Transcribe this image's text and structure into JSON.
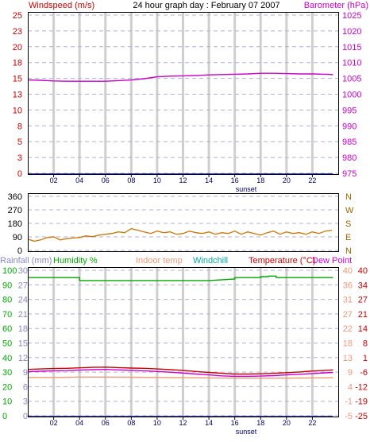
{
  "chart_data": [
    {
      "type": "line",
      "panel": "top",
      "title": "24 hour graph day : February 07 2007",
      "left_axis_label": "Windspeed (m/s)",
      "right_axis_label": "Barometer (hPa)",
      "left_ticks": [
        "25",
        "23",
        "20",
        "18",
        "15",
        "13",
        "10",
        "8",
        "5",
        "3",
        "0"
      ],
      "right_ticks": [
        "1025",
        "1020",
        "1015",
        "1010",
        "1005",
        "1000",
        "995",
        "990",
        "985",
        "980",
        "975"
      ],
      "x_ticks": [
        "02",
        "04",
        "06",
        "08",
        "10",
        "12",
        "14",
        "16",
        "18",
        "20",
        "22"
      ],
      "x_annotation": "sunset",
      "xlim": [
        0,
        24
      ],
      "left_ylim": [
        0,
        25.5
      ],
      "right_ylim": [
        975,
        1026
      ],
      "colors": {
        "left_label": "#cc0000",
        "right_label": "#cc00cc"
      },
      "series": [
        {
          "axis": "right",
          "color": "#cc00cc",
          "x": [
            0,
            1,
            2,
            3,
            4,
            5,
            6,
            7,
            8,
            9,
            10,
            11,
            12,
            13,
            14,
            15,
            16,
            17,
            18,
            19,
            20,
            21,
            22,
            23,
            23.6
          ],
          "values": [
            1004.6,
            1004.5,
            1004.3,
            1004.2,
            1004.2,
            1004.2,
            1004.2,
            1004.4,
            1004.6,
            1005.0,
            1005.6,
            1005.8,
            1005.9,
            1006.0,
            1006.2,
            1006.3,
            1006.4,
            1006.5,
            1006.7,
            1006.7,
            1006.6,
            1006.5,
            1006.5,
            1006.4,
            1006.3
          ]
        },
        {
          "axis": "left",
          "color": "#0000cc",
          "x": [
            0,
            23.6
          ],
          "values": [
            0,
            0
          ]
        }
      ]
    },
    {
      "type": "line",
      "panel": "middle",
      "left_ticks": [
        "360",
        "270",
        "180",
        "90",
        "0"
      ],
      "right_ticks": [
        "N",
        "W",
        "S",
        "E",
        "N"
      ],
      "xlim": [
        0,
        24
      ],
      "ylim": [
        0,
        360
      ],
      "colors": {
        "right_label": "#996600"
      },
      "series": [
        {
          "color": "#cc7700",
          "x": [
            0,
            0.5,
            1,
            1.5,
            2,
            2.5,
            3,
            3.5,
            4,
            4.5,
            5,
            5.5,
            6,
            6.5,
            7,
            7.5,
            8,
            8.5,
            9,
            9.5,
            10,
            10.5,
            11,
            11.5,
            12,
            12.5,
            13,
            13.5,
            14,
            14.5,
            15,
            15.5,
            16,
            16.5,
            17,
            17.5,
            18,
            18.5,
            19,
            19.5,
            20,
            20.5,
            21,
            21.5,
            22,
            22.5,
            23,
            23.5
          ],
          "values": [
            75,
            62,
            70,
            85,
            90,
            70,
            78,
            82,
            85,
            95,
            90,
            100,
            105,
            110,
            120,
            115,
            140,
            130,
            120,
            110,
            125,
            115,
            120,
            105,
            110,
            125,
            115,
            110,
            120,
            105,
            115,
            110,
            125,
            105,
            120,
            110,
            100,
            115,
            125,
            105,
            120,
            110,
            115,
            105,
            120,
            110,
            125,
            130
          ]
        }
      ]
    },
    {
      "type": "line",
      "panel": "bottom",
      "legend": [
        {
          "label": "Rainfall (mm)",
          "color": "#8888cc"
        },
        {
          "label": "Humidity %",
          "color": "#00aa00"
        },
        {
          "label": "Indoor temp",
          "color": "#ee9977"
        },
        {
          "label": "Windchill",
          "color": "#00aaaa"
        },
        {
          "label": "Temperature (°C)",
          "color": "#cc0000"
        },
        {
          "label": "Dew Point",
          "color": "#cc00cc"
        }
      ],
      "rain_ticks": [
        "30",
        "27",
        "24",
        "21",
        "18",
        "15",
        "12",
        "9",
        "6",
        "3",
        "0"
      ],
      "humidity_ticks": [
        "100",
        "90",
        "80",
        "70",
        "60",
        "50",
        "40",
        "30",
        "20",
        "10",
        "0"
      ],
      "indoor_ticks": [
        "40",
        "36",
        "31",
        "27",
        "22",
        "18",
        "13",
        "9",
        "4",
        "-1",
        "-5"
      ],
      "temp_ticks": [
        "40",
        "34",
        "27",
        "21",
        "14",
        "8",
        "1",
        "-6",
        "-12",
        "-19",
        "-25"
      ],
      "x_ticks": [
        "02",
        "04",
        "06",
        "08",
        "10",
        "12",
        "14",
        "16",
        "18",
        "20",
        "22"
      ],
      "x_annotation": "sunset",
      "xlim": [
        0,
        24
      ],
      "rain_ylim": [
        0,
        30
      ],
      "humidity_ylim": [
        0,
        100
      ],
      "temp_ylim": [
        -25,
        40
      ],
      "series": [
        {
          "name": "Humidity %",
          "axis": "humidity",
          "color": "#00aa00",
          "x": [
            0,
            2,
            4,
            4.01,
            6,
            8,
            10,
            12,
            14,
            16,
            16.01,
            18,
            18.01,
            18.6,
            18.61,
            19.2,
            19.21,
            20,
            22,
            23.6
          ],
          "values": [
            93,
            93,
            93,
            91,
            91,
            91,
            91,
            91,
            91,
            92,
            93,
            93,
            93.6,
            93.6,
            94,
            94,
            93,
            93,
            93,
            93
          ]
        },
        {
          "name": "Temperature (°C)",
          "axis": "temp",
          "color": "#cc0000",
          "x": [
            0,
            1,
            2,
            3,
            4,
            5,
            6,
            7,
            8,
            9,
            10,
            11,
            12,
            13,
            14,
            15,
            16,
            17,
            18,
            19,
            20,
            21,
            22,
            23,
            23.6
          ],
          "values": [
            -4.5,
            -4.3,
            -4.1,
            -4.0,
            -3.8,
            -3.6,
            -3.5,
            -3.7,
            -3.9,
            -4.0,
            -4.3,
            -4.6,
            -4.9,
            -5.4,
            -5.8,
            -6.2,
            -6.5,
            -6.5,
            -6.4,
            -6.2,
            -5.9,
            -5.6,
            -5.2,
            -4.9,
            -4.7
          ]
        },
        {
          "name": "Dew Point",
          "axis": "temp",
          "color": "#cc00cc",
          "x": [
            0,
            1,
            2,
            3,
            4,
            5,
            6,
            7,
            8,
            9,
            10,
            11,
            12,
            13,
            14,
            15,
            16,
            17,
            18,
            19,
            20,
            21,
            22,
            23,
            23.6
          ],
          "values": [
            -5.5,
            -5.3,
            -5.1,
            -5.0,
            -4.8,
            -4.6,
            -4.5,
            -4.7,
            -4.9,
            -5.1,
            -5.4,
            -5.7,
            -6.1,
            -6.5,
            -6.9,
            -7.3,
            -7.5,
            -7.5,
            -7.4,
            -7.2,
            -6.9,
            -6.6,
            -6.3,
            -6.0,
            -5.8
          ]
        },
        {
          "name": "Indoor temp",
          "axis": "temp",
          "color": "#ee9977",
          "x": [
            0,
            2,
            4,
            6,
            8,
            10,
            12,
            14,
            16,
            18,
            20,
            22,
            23.6
          ],
          "values": [
            -8,
            -8,
            -7.8,
            -7.8,
            -7.9,
            -8,
            -8.1,
            -8.2,
            -8.3,
            -8.3,
            -8.3,
            -8.2,
            -8.1
          ]
        },
        {
          "name": "Rainfall (mm)",
          "axis": "rain",
          "color": "#0000cc",
          "x": [
            0,
            23.6
          ],
          "values": [
            0,
            0
          ]
        }
      ]
    }
  ]
}
